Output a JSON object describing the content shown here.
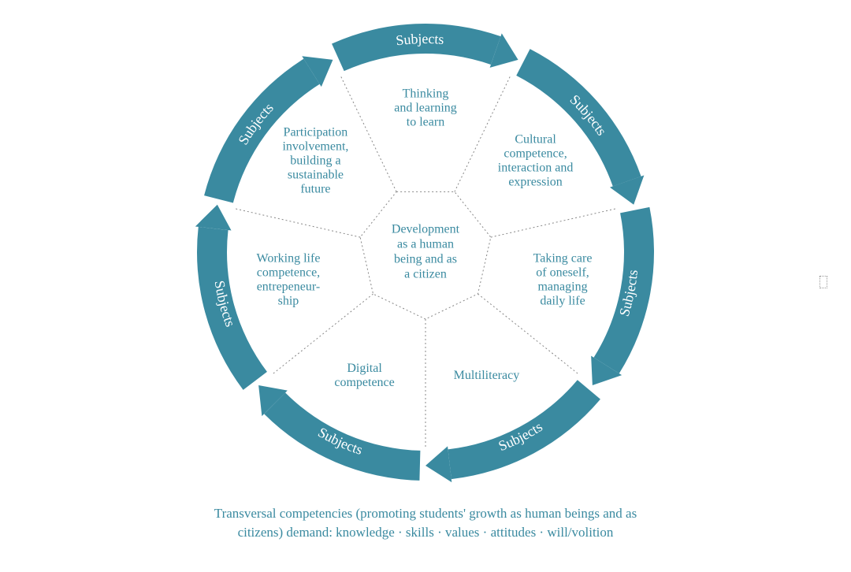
{
  "diagram": {
    "type": "circular-segmented",
    "ring_color": "#3a8aa0",
    "ring_label_color": "#ffffff",
    "text_color": "#3a8aa0",
    "background_color": "#ffffff",
    "divider_style": "dotted",
    "divider_color": "#888888",
    "outer_radius": 290,
    "ring_thickness": 38,
    "inner_hex_radius": 85,
    "segment_count": 7,
    "ring_label": "Subjects",
    "ring_label_fontsize": 18,
    "segment_fontsize": 16,
    "center_fontsize": 16,
    "center_label_lines": [
      "Development",
      "as a human",
      "being and as",
      "a citizen"
    ],
    "segments": [
      {
        "lines": [
          "Thinking",
          "and learning",
          "to learn"
        ]
      },
      {
        "lines": [
          "Cultural",
          "competence,",
          "interaction and",
          "expression"
        ]
      },
      {
        "lines": [
          "Taking care",
          "of oneself,",
          "managing",
          "daily life"
        ]
      },
      {
        "lines": [
          "Multiliteracy"
        ]
      },
      {
        "lines": [
          "Digital",
          "competence"
        ]
      },
      {
        "lines": [
          "Working life",
          "competence,",
          "entrepeneur-",
          "ship"
        ]
      },
      {
        "lines": [
          "Participation",
          "involvement,",
          "building a",
          "sustainable",
          "future"
        ]
      }
    ]
  },
  "caption_line1": "Transversal competencies (promoting students' growth as human beings and as",
  "caption_line2": "citizens) demand:  knowledge  ·  skills  ·  values  ·  attitudes  ·  will/volition"
}
